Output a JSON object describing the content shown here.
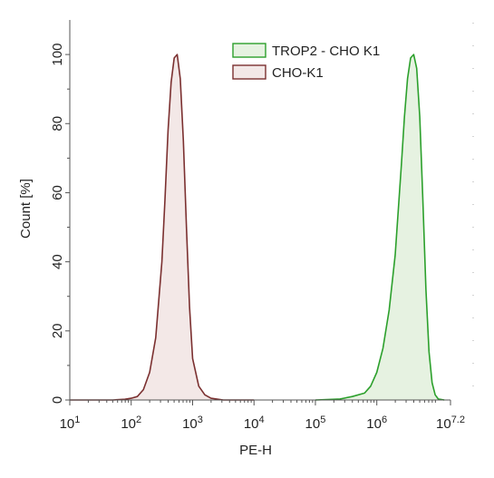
{
  "chart_data": {
    "type": "area",
    "title": "",
    "xlabel": "PE-H",
    "ylabel": "Count [%]",
    "x_scale": "log10",
    "xlim": [
      10,
      15848932
    ],
    "ylim": [
      0,
      110
    ],
    "x_ticks": [
      {
        "value": 10,
        "base": "10",
        "exp": "1"
      },
      {
        "value": 100,
        "base": "10",
        "exp": "2"
      },
      {
        "value": 1000,
        "base": "10",
        "exp": "3"
      },
      {
        "value": 10000,
        "base": "10",
        "exp": "4"
      },
      {
        "value": 100000,
        "base": "10",
        "exp": "5"
      },
      {
        "value": 1000000,
        "base": "10",
        "exp": "6"
      },
      {
        "value": 15848932,
        "base": "10",
        "exp": "7.2"
      }
    ],
    "y_ticks": [
      "0",
      "20",
      "40",
      "60",
      "80",
      "100"
    ],
    "legend_position": "top-right",
    "grid": false,
    "series": [
      {
        "name": "TROP2 - CHO K1",
        "color": "#2ca02c",
        "fill": "#e6f2e1",
        "x": [
          100000,
          251189,
          398107,
          630957,
          794328,
          1000000,
          1258925,
          1584893,
          1995262,
          2238721,
          2511886,
          2818383,
          3162278,
          3548134,
          3981072,
          4466836,
          5011872,
          5623413,
          6309573,
          7079458,
          7943282,
          8912509,
          10000000,
          12589254
        ],
        "y": [
          0,
          0.3,
          1,
          2,
          4,
          8,
          15,
          26,
          42,
          55,
          68,
          82,
          93,
          99,
          100,
          96,
          82,
          58,
          32,
          14,
          5,
          1.5,
          0.3,
          0
        ]
      },
      {
        "name": "CHO-K1",
        "color": "#7b3030",
        "fill": "#f3e8e7",
        "x": [
          10,
          50,
          79,
          100,
          126,
          158,
          200,
          251,
          316,
          355,
          398,
          447,
          501,
          562,
          631,
          708,
          794,
          891,
          1000,
          1259,
          1585,
          1995,
          3162,
          10000
        ],
        "y": [
          0,
          0,
          0.2,
          0.5,
          1,
          3,
          8,
          18,
          40,
          58,
          78,
          92,
          99,
          100,
          93,
          75,
          50,
          27,
          12,
          4,
          1.5,
          0.5,
          0,
          0
        ]
      }
    ]
  }
}
